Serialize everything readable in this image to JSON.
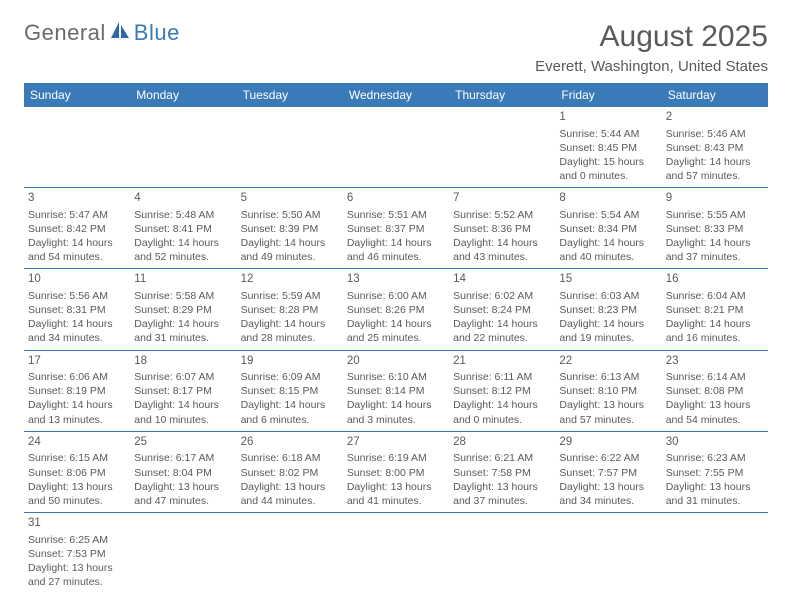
{
  "logo": {
    "text1": "General",
    "text2": "Blue"
  },
  "title": "August 2025",
  "location": "Everett, Washington, United States",
  "colors": {
    "header_bg": "#3b7ab8",
    "header_text": "#ffffff",
    "cell_border": "#3b7ab8",
    "body_text": "#5a5a5a",
    "page_bg": "#ffffff"
  },
  "day_headers": [
    "Sunday",
    "Monday",
    "Tuesday",
    "Wednesday",
    "Thursday",
    "Friday",
    "Saturday"
  ],
  "weeks": [
    [
      null,
      null,
      null,
      null,
      null,
      {
        "n": "1",
        "sr": "Sunrise: 5:44 AM",
        "ss": "Sunset: 8:45 PM",
        "dl": "Daylight: 15 hours and 0 minutes."
      },
      {
        "n": "2",
        "sr": "Sunrise: 5:46 AM",
        "ss": "Sunset: 8:43 PM",
        "dl": "Daylight: 14 hours and 57 minutes."
      }
    ],
    [
      {
        "n": "3",
        "sr": "Sunrise: 5:47 AM",
        "ss": "Sunset: 8:42 PM",
        "dl": "Daylight: 14 hours and 54 minutes."
      },
      {
        "n": "4",
        "sr": "Sunrise: 5:48 AM",
        "ss": "Sunset: 8:41 PM",
        "dl": "Daylight: 14 hours and 52 minutes."
      },
      {
        "n": "5",
        "sr": "Sunrise: 5:50 AM",
        "ss": "Sunset: 8:39 PM",
        "dl": "Daylight: 14 hours and 49 minutes."
      },
      {
        "n": "6",
        "sr": "Sunrise: 5:51 AM",
        "ss": "Sunset: 8:37 PM",
        "dl": "Daylight: 14 hours and 46 minutes."
      },
      {
        "n": "7",
        "sr": "Sunrise: 5:52 AM",
        "ss": "Sunset: 8:36 PM",
        "dl": "Daylight: 14 hours and 43 minutes."
      },
      {
        "n": "8",
        "sr": "Sunrise: 5:54 AM",
        "ss": "Sunset: 8:34 PM",
        "dl": "Daylight: 14 hours and 40 minutes."
      },
      {
        "n": "9",
        "sr": "Sunrise: 5:55 AM",
        "ss": "Sunset: 8:33 PM",
        "dl": "Daylight: 14 hours and 37 minutes."
      }
    ],
    [
      {
        "n": "10",
        "sr": "Sunrise: 5:56 AM",
        "ss": "Sunset: 8:31 PM",
        "dl": "Daylight: 14 hours and 34 minutes."
      },
      {
        "n": "11",
        "sr": "Sunrise: 5:58 AM",
        "ss": "Sunset: 8:29 PM",
        "dl": "Daylight: 14 hours and 31 minutes."
      },
      {
        "n": "12",
        "sr": "Sunrise: 5:59 AM",
        "ss": "Sunset: 8:28 PM",
        "dl": "Daylight: 14 hours and 28 minutes."
      },
      {
        "n": "13",
        "sr": "Sunrise: 6:00 AM",
        "ss": "Sunset: 8:26 PM",
        "dl": "Daylight: 14 hours and 25 minutes."
      },
      {
        "n": "14",
        "sr": "Sunrise: 6:02 AM",
        "ss": "Sunset: 8:24 PM",
        "dl": "Daylight: 14 hours and 22 minutes."
      },
      {
        "n": "15",
        "sr": "Sunrise: 6:03 AM",
        "ss": "Sunset: 8:23 PM",
        "dl": "Daylight: 14 hours and 19 minutes."
      },
      {
        "n": "16",
        "sr": "Sunrise: 6:04 AM",
        "ss": "Sunset: 8:21 PM",
        "dl": "Daylight: 14 hours and 16 minutes."
      }
    ],
    [
      {
        "n": "17",
        "sr": "Sunrise: 6:06 AM",
        "ss": "Sunset: 8:19 PM",
        "dl": "Daylight: 14 hours and 13 minutes."
      },
      {
        "n": "18",
        "sr": "Sunrise: 6:07 AM",
        "ss": "Sunset: 8:17 PM",
        "dl": "Daylight: 14 hours and 10 minutes."
      },
      {
        "n": "19",
        "sr": "Sunrise: 6:09 AM",
        "ss": "Sunset: 8:15 PM",
        "dl": "Daylight: 14 hours and 6 minutes."
      },
      {
        "n": "20",
        "sr": "Sunrise: 6:10 AM",
        "ss": "Sunset: 8:14 PM",
        "dl": "Daylight: 14 hours and 3 minutes."
      },
      {
        "n": "21",
        "sr": "Sunrise: 6:11 AM",
        "ss": "Sunset: 8:12 PM",
        "dl": "Daylight: 14 hours and 0 minutes."
      },
      {
        "n": "22",
        "sr": "Sunrise: 6:13 AM",
        "ss": "Sunset: 8:10 PM",
        "dl": "Daylight: 13 hours and 57 minutes."
      },
      {
        "n": "23",
        "sr": "Sunrise: 6:14 AM",
        "ss": "Sunset: 8:08 PM",
        "dl": "Daylight: 13 hours and 54 minutes."
      }
    ],
    [
      {
        "n": "24",
        "sr": "Sunrise: 6:15 AM",
        "ss": "Sunset: 8:06 PM",
        "dl": "Daylight: 13 hours and 50 minutes."
      },
      {
        "n": "25",
        "sr": "Sunrise: 6:17 AM",
        "ss": "Sunset: 8:04 PM",
        "dl": "Daylight: 13 hours and 47 minutes."
      },
      {
        "n": "26",
        "sr": "Sunrise: 6:18 AM",
        "ss": "Sunset: 8:02 PM",
        "dl": "Daylight: 13 hours and 44 minutes."
      },
      {
        "n": "27",
        "sr": "Sunrise: 6:19 AM",
        "ss": "Sunset: 8:00 PM",
        "dl": "Daylight: 13 hours and 41 minutes."
      },
      {
        "n": "28",
        "sr": "Sunrise: 6:21 AM",
        "ss": "Sunset: 7:58 PM",
        "dl": "Daylight: 13 hours and 37 minutes."
      },
      {
        "n": "29",
        "sr": "Sunrise: 6:22 AM",
        "ss": "Sunset: 7:57 PM",
        "dl": "Daylight: 13 hours and 34 minutes."
      },
      {
        "n": "30",
        "sr": "Sunrise: 6:23 AM",
        "ss": "Sunset: 7:55 PM",
        "dl": "Daylight: 13 hours and 31 minutes."
      }
    ],
    [
      {
        "n": "31",
        "sr": "Sunrise: 6:25 AM",
        "ss": "Sunset: 7:53 PM",
        "dl": "Daylight: 13 hours and 27 minutes."
      },
      null,
      null,
      null,
      null,
      null,
      null
    ]
  ]
}
